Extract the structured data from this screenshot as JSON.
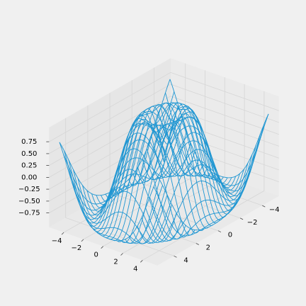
{
  "chart_data": {
    "type": "wireframe-3d",
    "function": "sin(sqrt(x^2 + y^2))",
    "x_range": [
      -5,
      5
    ],
    "y_range": [
      -5,
      5
    ],
    "z_range": [
      -1,
      1
    ],
    "grid_samples": 24,
    "color": "#1f96d2",
    "axis_pane_color": "#ebebeb",
    "grid_color": "#d6d6d6",
    "x_ticks": [
      "−4",
      "−2",
      "0",
      "2",
      "4"
    ],
    "x_tick_values": [
      -4,
      -2,
      0,
      2,
      4
    ],
    "y_ticks": [
      "−4",
      "−2",
      "0",
      "2",
      "4"
    ],
    "y_tick_values": [
      -4,
      -2,
      0,
      2,
      4
    ],
    "z_ticks": [
      "0.75",
      "0.50",
      "0.25",
      "0.00",
      "−0.25",
      "−0.50",
      "−0.75"
    ],
    "z_tick_values": [
      0.75,
      0.5,
      0.25,
      0,
      -0.25,
      -0.5,
      -0.75
    ],
    "title": "",
    "xlabel": "",
    "ylabel": "",
    "zlabel": ""
  }
}
